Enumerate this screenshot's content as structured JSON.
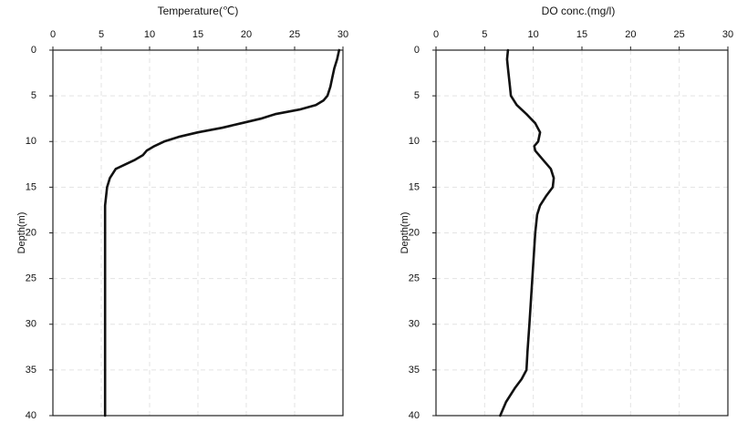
{
  "chart_data": [
    {
      "type": "line",
      "title": "Temperature(℃)",
      "xlabel": "Temperature(℃)",
      "ylabel": "Depth(m)",
      "xlim": [
        0,
        30
      ],
      "ylim": [
        0,
        40
      ],
      "x_axis_position": "top",
      "y_inverted": true,
      "grid": true,
      "xticks": [
        "0",
        "5",
        "10",
        "15",
        "20",
        "25",
        "30"
      ],
      "yticks": [
        "0",
        "5",
        "10",
        "15",
        "20",
        "25",
        "30",
        "35",
        "40"
      ],
      "series": [
        {
          "x": [
            29.6,
            29.4,
            29.1,
            28.9,
            28.7,
            28.4,
            28.0,
            27.2,
            25.5,
            23.0,
            21.5,
            19.5,
            17.5,
            15.0,
            13.0,
            11.5,
            10.5,
            9.7,
            9.3,
            8.5,
            7.5,
            6.5,
            5.9,
            5.6,
            5.5,
            5.4,
            5.4,
            5.4,
            5.4,
            5.4,
            5.4
          ],
          "y": [
            0,
            1,
            2,
            3,
            4,
            5,
            5.5,
            6,
            6.5,
            7,
            7.5,
            8,
            8.5,
            9,
            9.5,
            10,
            10.5,
            11,
            11.5,
            12,
            12.5,
            13,
            14,
            15,
            16,
            17,
            20,
            25,
            30,
            35,
            40
          ]
        }
      ]
    },
    {
      "type": "line",
      "title": "DO conc.(mg/l)",
      "xlabel": "DO conc.(mg/l)",
      "ylabel": "Depth(m)",
      "xlim": [
        0,
        30
      ],
      "ylim": [
        0,
        40
      ],
      "x_axis_position": "top",
      "y_inverted": true,
      "grid": true,
      "xticks": [
        "0",
        "5",
        "10",
        "15",
        "20",
        "25",
        "30"
      ],
      "yticks": [
        "0",
        "5",
        "10",
        "15",
        "20",
        "25",
        "30",
        "35",
        "40"
      ],
      "series": [
        {
          "x": [
            7.4,
            7.3,
            7.4,
            7.5,
            7.6,
            7.7,
            8.3,
            9.3,
            10.2,
            10.7,
            10.5,
            10.1,
            10.2,
            11.0,
            11.8,
            12.1,
            12.0,
            11.3,
            10.7,
            10.4,
            10.2,
            9.9,
            9.6,
            9.4,
            9.3,
            8.8,
            8.1,
            7.2,
            6.6
          ],
          "y": [
            0,
            1,
            2,
            3,
            4,
            5,
            6,
            7,
            8,
            9,
            10,
            10.5,
            11,
            12,
            13,
            14,
            15,
            16,
            17,
            18,
            20,
            25,
            30,
            33,
            35,
            36,
            37,
            38.5,
            40
          ]
        }
      ]
    }
  ]
}
